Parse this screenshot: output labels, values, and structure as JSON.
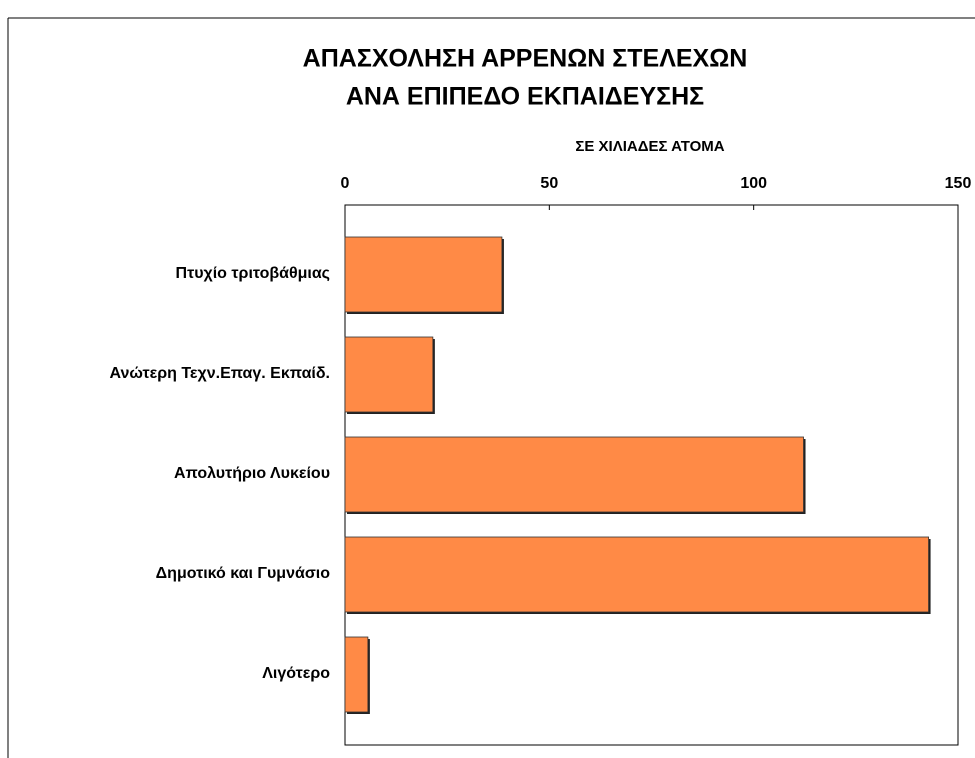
{
  "chart_data": {
    "type": "hbar",
    "title": "ΑΠΑΣΧΟΛΗΣΗ ΑΡΡΕΝΩΝ ΣΤΕΛΕΧΩΝ",
    "subtitle": "ΑΝΑ ΕΠΙΠΕΔΟ ΕΚΠΑΙΔΕΥΣΗΣ",
    "x_label": "ΣΕ ΧΙΛΙΑΔΕΣ ΑΤΟΜΑ",
    "categories": [
      "Πτυχίο τριτοβάθμιας",
      "Ανώτερη Τεχν.Επαγ. Εκπαίδ.",
      "Απολυτήριο Λυκείου",
      "Δημοτικό και Γυμνάσιο",
      "Λιγότερο"
    ],
    "values": [
      38.4,
      21.5,
      112.2,
      142.8,
      5.6
    ],
    "color": "#ff8a46",
    "xlim": [
      0,
      150
    ],
    "xticks": [
      0,
      50,
      100,
      150
    ]
  }
}
